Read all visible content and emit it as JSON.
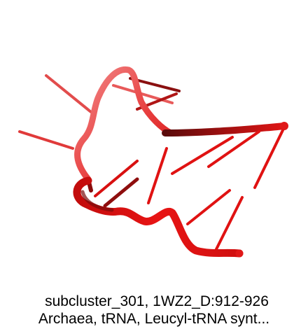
{
  "image": {
    "render": {
      "molecule": "RNA cartoon (backbone tube with nucleotide sticks)",
      "colors": {
        "backbone_light": "#f07070",
        "backbone": "#e01010",
        "backbone_dark": "#7a0c0c",
        "background": "#ffffff"
      }
    },
    "caption": {
      "line1": "subcluster_301, 1WZ2_D:912-926",
      "line2": "Archaea, tRNA, Leucyl-tRNA synt..."
    }
  }
}
